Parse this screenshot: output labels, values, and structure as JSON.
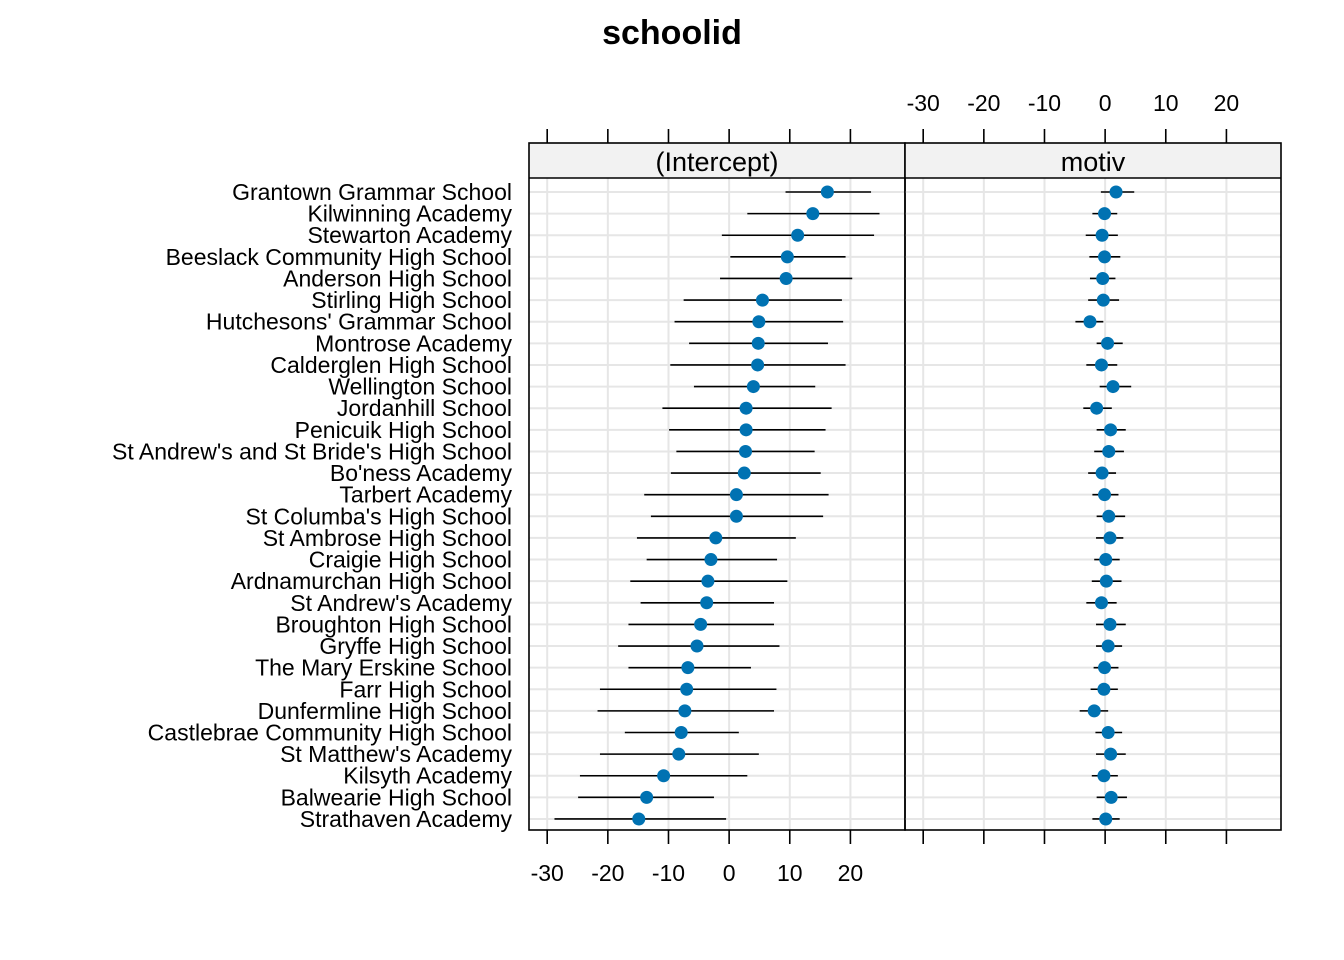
{
  "chart_data": {
    "type": "dotplot",
    "title": "schoolid",
    "xlim": [
      -33,
      29
    ],
    "ticks": [
      -30,
      -20,
      -10,
      0,
      10,
      20
    ],
    "grid": true,
    "point_color": "#0072B2",
    "panels": [
      "(Intercept)",
      "motiv"
    ],
    "categories": [
      "Grantown Grammar School",
      "Kilwinning Academy",
      "Stewarton Academy",
      "Beeslack Community High School",
      "Anderson High School",
      "Stirling High School",
      "Hutchesons' Grammar School",
      "Montrose Academy",
      "Calderglen High School",
      "Wellington School",
      "Jordanhill School",
      "Penicuik High School",
      "St Andrew's and St Bride's High School",
      "Bo'ness Academy",
      "Tarbert Academy",
      "St Columba's High School",
      "St Ambrose High School",
      "Craigie High School",
      "Ardnamurchan High School",
      "St Andrew's Academy",
      "Broughton High School",
      "Gryffe High School",
      "The Mary Erskine School",
      "Farr High School",
      "Dunfermline High School",
      "Castlebrae Community High School",
      "St Matthew's Academy",
      "Kilsyth Academy",
      "Balwearie High School",
      "Strathaven Academy"
    ],
    "series": [
      {
        "name": "(Intercept)",
        "estimate": [
          16.2,
          13.8,
          11.3,
          9.6,
          9.4,
          5.5,
          4.9,
          4.8,
          4.7,
          4.0,
          2.8,
          2.8,
          2.7,
          2.5,
          1.2,
          1.2,
          -2.2,
          -3.0,
          -3.5,
          -3.7,
          -4.7,
          -5.3,
          -6.8,
          -7.0,
          -7.3,
          -7.9,
          -8.3,
          -10.8,
          -13.6,
          -14.9
        ],
        "lower": [
          9.3,
          3.0,
          -1.2,
          0.2,
          -1.5,
          -7.5,
          -9.0,
          -6.6,
          -9.7,
          -5.8,
          -11.0,
          -9.9,
          -8.7,
          -9.6,
          -14.0,
          -12.9,
          -15.2,
          -13.6,
          -16.3,
          -14.6,
          -16.6,
          -18.3,
          -16.6,
          -21.3,
          -21.7,
          -17.2,
          -21.3,
          -24.6,
          -24.9,
          -28.8
        ],
        "upper": [
          23.4,
          24.8,
          23.9,
          19.2,
          20.3,
          18.6,
          18.8,
          16.3,
          19.2,
          14.2,
          16.9,
          15.9,
          14.1,
          15.1,
          16.4,
          15.5,
          11.0,
          7.9,
          9.6,
          7.4,
          7.4,
          8.3,
          3.6,
          7.8,
          7.4,
          1.6,
          4.9,
          3.0,
          -2.5,
          -0.5
        ]
      },
      {
        "name": "motiv",
        "estimate": [
          1.8,
          -0.1,
          -0.5,
          -0.1,
          -0.4,
          -0.3,
          -2.5,
          0.4,
          -0.6,
          1.3,
          -1.4,
          0.9,
          0.6,
          -0.5,
          -0.1,
          0.6,
          0.8,
          0.1,
          0.2,
          -0.6,
          0.8,
          0.5,
          -0.1,
          -0.2,
          -1.8,
          0.5,
          0.9,
          -0.2,
          1.0,
          0.1
        ],
        "lower": [
          -0.7,
          -2.1,
          -3.2,
          -2.6,
          -2.5,
          -2.8,
          -4.9,
          -1.4,
          -3.1,
          -0.9,
          -3.6,
          -1.4,
          -1.8,
          -2.8,
          -2.1,
          -1.4,
          -1.5,
          -1.8,
          -2.2,
          -3.1,
          -1.5,
          -1.5,
          -1.9,
          -2.4,
          -4.2,
          -1.6,
          -1.5,
          -2.2,
          -1.4,
          -2.1
        ],
        "upper": [
          4.8,
          2.0,
          2.1,
          2.5,
          1.7,
          2.3,
          -0.3,
          2.9,
          2.0,
          4.3,
          1.1,
          3.4,
          3.1,
          1.8,
          2.2,
          3.3,
          3.0,
          2.4,
          2.7,
          1.9,
          3.4,
          2.8,
          2.2,
          2.1,
          0.5,
          2.8,
          3.4,
          2.1,
          3.6,
          2.4
        ]
      }
    ]
  }
}
